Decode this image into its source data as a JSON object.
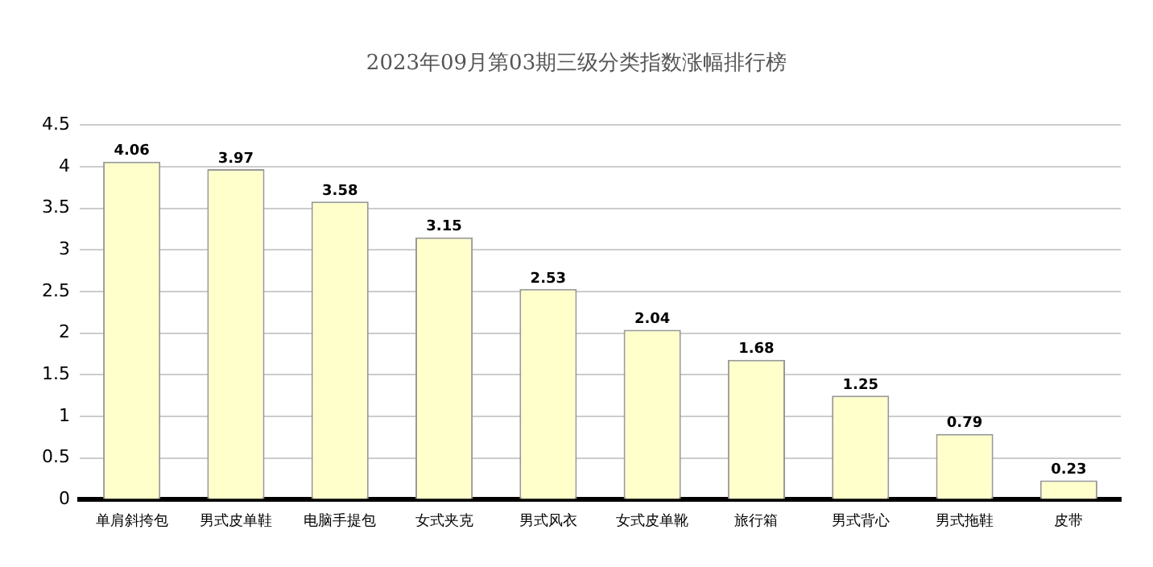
{
  "chart_data": {
    "type": "bar",
    "title": "2023年09月第03期三级分类指数涨幅排行榜",
    "categories": [
      "单肩斜挎包",
      "男式皮单鞋",
      "电脑手提包",
      "女式夹克",
      "男式风衣",
      "女式皮单靴",
      "旅行箱",
      "男式背心",
      "男式拖鞋",
      "皮带"
    ],
    "values": [
      4.06,
      3.97,
      3.58,
      3.15,
      2.53,
      2.04,
      1.68,
      1.25,
      0.79,
      0.23
    ],
    "color": "#ffffcc",
    "ylim": [
      0,
      4.5
    ],
    "yticks": [
      0,
      0.5,
      1,
      1.5,
      2,
      2.5,
      3,
      3.5,
      4,
      4.5
    ],
    "grid": "y",
    "legend": false,
    "data_labels": true
  }
}
